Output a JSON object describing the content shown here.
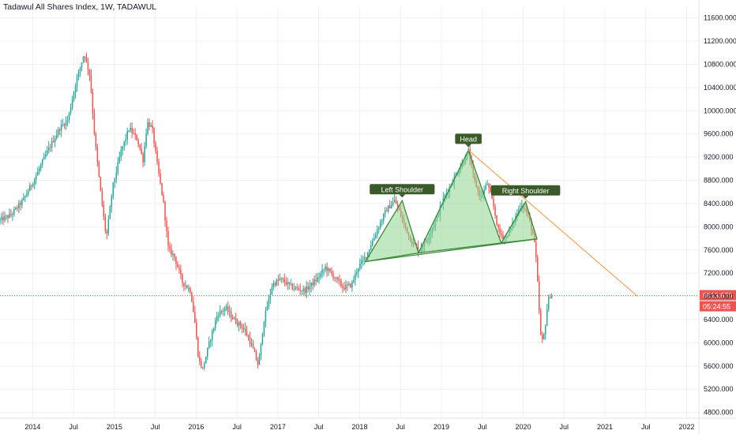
{
  "header": {
    "title": "Tadawul All Shares Index, 1W, TADAWUL"
  },
  "chart_data": {
    "type": "candlestick",
    "title": "Tadawul All Shares Index, 1W, TADAWUL",
    "y_ticks": [
      4800,
      5200,
      5600,
      6000,
      6400,
      6800,
      7200,
      7600,
      8000,
      8400,
      8800,
      9200,
      9600,
      10000,
      10400,
      10800,
      11200,
      11600
    ],
    "y_tick_labels": [
      "4800.000",
      "5200.000",
      "5600.000",
      "6000.000",
      "6400.000",
      "6800.000",
      "7200.000",
      "7600.000",
      "8000.000",
      "8400.000",
      "8800.000",
      "9200.000",
      "9600.000",
      "10000.000",
      "10400.000",
      "10800.000",
      "11200.000",
      "11600.000"
    ],
    "ylim": [
      4700,
      11800
    ],
    "x_ticks": [
      {
        "label": "2014",
        "t": 2014.0
      },
      {
        "label": "Jul",
        "t": 2014.5
      },
      {
        "label": "2015",
        "t": 2015.0
      },
      {
        "label": "Jul",
        "t": 2015.5
      },
      {
        "label": "2016",
        "t": 2016.0
      },
      {
        "label": "Jul",
        "t": 2016.5
      },
      {
        "label": "2017",
        "t": 2017.0
      },
      {
        "label": "Jul",
        "t": 2017.5
      },
      {
        "label": "2018",
        "t": 2018.0
      },
      {
        "label": "Jul",
        "t": 2018.5
      },
      {
        "label": "2019",
        "t": 2019.0
      },
      {
        "label": "Jul",
        "t": 2019.5
      },
      {
        "label": "2020",
        "t": 2020.0
      },
      {
        "label": "Jul",
        "t": 2020.5
      },
      {
        "label": "2021",
        "t": 2021.0
      },
      {
        "label": "Jul",
        "t": 2021.5
      },
      {
        "label": "2022",
        "t": 2022.0
      }
    ],
    "xlim": [
      2013.6,
      2022.15
    ],
    "price_path": [
      [
        2013.6,
        8100
      ],
      [
        2013.75,
        8200
      ],
      [
        2013.9,
        8450
      ],
      [
        2014.05,
        8850
      ],
      [
        2014.2,
        9300
      ],
      [
        2014.35,
        9700
      ],
      [
        2014.45,
        9850
      ],
      [
        2014.55,
        10500
      ],
      [
        2014.65,
        11000
      ],
      [
        2014.72,
        10600
      ],
      [
        2014.78,
        9500
      ],
      [
        2014.85,
        8600
      ],
      [
        2014.92,
        7800
      ],
      [
        2015.0,
        8700
      ],
      [
        2015.1,
        9300
      ],
      [
        2015.2,
        9700
      ],
      [
        2015.3,
        9500
      ],
      [
        2015.37,
        9150
      ],
      [
        2015.42,
        9800
      ],
      [
        2015.48,
        9700
      ],
      [
        2015.55,
        9000
      ],
      [
        2015.62,
        8400
      ],
      [
        2015.68,
        7600
      ],
      [
        2015.75,
        7500
      ],
      [
        2015.85,
        7050
      ],
      [
        2015.95,
        6900
      ],
      [
        2016.0,
        6400
      ],
      [
        2016.05,
        5700
      ],
      [
        2016.1,
        5550
      ],
      [
        2016.18,
        6000
      ],
      [
        2016.28,
        6500
      ],
      [
        2016.38,
        6600
      ],
      [
        2016.48,
        6400
      ],
      [
        2016.6,
        6250
      ],
      [
        2016.7,
        5950
      ],
      [
        2016.78,
        5600
      ],
      [
        2016.85,
        6400
      ],
      [
        2016.95,
        7000
      ],
      [
        2017.05,
        7100
      ],
      [
        2017.2,
        6950
      ],
      [
        2017.35,
        6900
      ],
      [
        2017.5,
        7100
      ],
      [
        2017.6,
        7300
      ],
      [
        2017.7,
        7150
      ],
      [
        2017.82,
        6950
      ],
      [
        2017.92,
        7000
      ],
      [
        2018.0,
        7300
      ],
      [
        2018.1,
        7500
      ],
      [
        2018.25,
        8000
      ],
      [
        2018.35,
        8300
      ],
      [
        2018.45,
        8450
      ],
      [
        2018.55,
        8100
      ],
      [
        2018.65,
        7750
      ],
      [
        2018.75,
        7600
      ],
      [
        2018.85,
        7800
      ],
      [
        2018.95,
        8100
      ],
      [
        2019.05,
        8500
      ],
      [
        2019.2,
        8900
      ],
      [
        2019.3,
        9150
      ],
      [
        2019.35,
        9300
      ],
      [
        2019.42,
        8800
      ],
      [
        2019.5,
        8500
      ],
      [
        2019.58,
        8750
      ],
      [
        2019.65,
        8400
      ],
      [
        2019.72,
        7900
      ],
      [
        2019.8,
        7800
      ],
      [
        2019.88,
        8000
      ],
      [
        2019.95,
        8250
      ],
      [
        2020.0,
        8400
      ],
      [
        2020.08,
        8200
      ],
      [
        2020.15,
        7800
      ],
      [
        2020.18,
        7400
      ],
      [
        2020.21,
        6700
      ],
      [
        2020.23,
        6150
      ],
      [
        2020.26,
        6000
      ],
      [
        2020.29,
        6300
      ],
      [
        2020.32,
        6700
      ],
      [
        2020.35,
        6813.67
      ]
    ],
    "pattern": {
      "triangles": [
        [
          [
            2018.07,
            7400
          ],
          [
            2018.52,
            8450
          ],
          [
            2018.72,
            7550
          ]
        ],
        [
          [
            2018.72,
            7550
          ],
          [
            2019.33,
            9320
          ],
          [
            2019.73,
            7720
          ]
        ],
        [
          [
            2019.73,
            7720
          ],
          [
            2020.03,
            8430
          ],
          [
            2020.17,
            7790
          ]
        ]
      ],
      "neckline": [
        [
          2018.07,
          7400
        ],
        [
          2020.17,
          7790
        ]
      ],
      "trendline": [
        [
          2019.33,
          9320
        ],
        [
          2021.4,
          6800
        ]
      ],
      "labels": [
        {
          "text": "Left Shoulder",
          "t": 2018.52,
          "v": 8450
        },
        {
          "text": "Head",
          "t": 2019.33,
          "v": 9320
        },
        {
          "text": "Right Shoulder",
          "t": 2020.03,
          "v": 8430
        }
      ]
    },
    "last_price": 6813.67,
    "last_price_label": "6813.670",
    "countdown_label": "05:24:55",
    "colors": {
      "up": "#26a69a",
      "down": "#ef5350",
      "pattern_fill": "#8fd68f",
      "pattern_stroke": "#3a8a3a",
      "label_bg": "#3b5a2a",
      "trendline": "#f2a35a",
      "price_line": "#ef5350",
      "grid": "#eef0f3",
      "axis": "#e0e3eb"
    }
  }
}
